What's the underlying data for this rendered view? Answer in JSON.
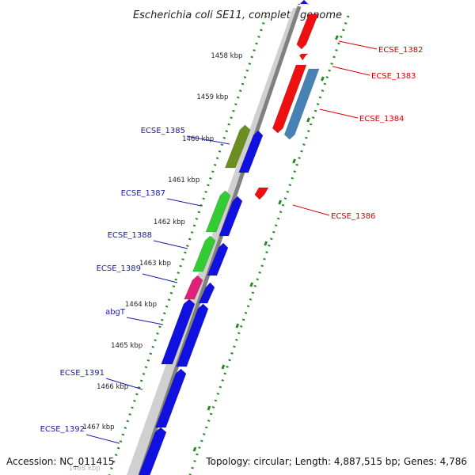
{
  "title": "Escherichia coli SE11, complete genome",
  "footer": {
    "accession": "Accession: NC_011415",
    "topology": "Topology: circular; Length: 4,887,515 bp; Genes: 4,786"
  },
  "colors": {
    "forward_cds": "#1010e0",
    "reverse_cds": "#ee1010",
    "green_gene": "#33cc33",
    "olive_gene": "#6b8e23",
    "magenta_gene": "#e0207a",
    "steel_gene": "#4682b4",
    "backbone": "#888888",
    "ticks": "#228b22",
    "blue_label": "#1a1aa8",
    "red_label": "#d40000"
  },
  "kbp_ticks": [
    {
      "label": "1458 kbp"
    },
    {
      "label": "1459 kbp"
    },
    {
      "label": "1460 kbp"
    },
    {
      "label": "1461 kbp"
    },
    {
      "label": "1462 kbp"
    },
    {
      "label": "1463 kbp"
    },
    {
      "label": "1464 kbp"
    },
    {
      "label": "1465 kbp"
    },
    {
      "label": "1466 kbp"
    },
    {
      "label": "1467 kbp"
    },
    {
      "label": "1468 kbp"
    }
  ],
  "forward_labels": [
    {
      "name": "ECSE_1385"
    },
    {
      "name": "ECSE_1387"
    },
    {
      "name": "ECSE_1388"
    },
    {
      "name": "ECSE_1389"
    },
    {
      "name": "abgT"
    },
    {
      "name": "ECSE_1391"
    },
    {
      "name": "ECSE_1392"
    }
  ],
  "reverse_labels": [
    {
      "name": "ECSE_1382"
    },
    {
      "name": "ECSE_1383"
    },
    {
      "name": "ECSE_1384"
    },
    {
      "name": "ECSE_1386"
    }
  ]
}
